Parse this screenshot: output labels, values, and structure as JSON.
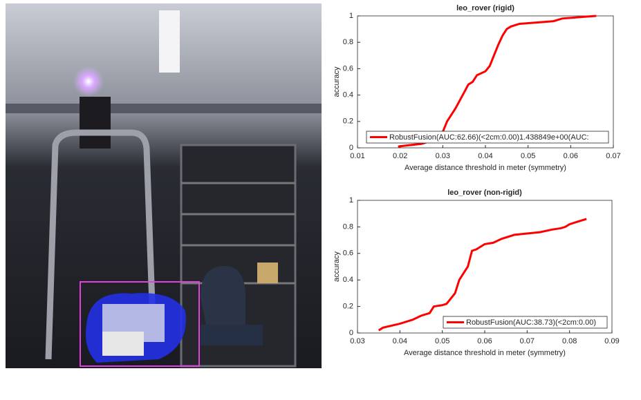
{
  "chart_data": [
    {
      "type": "line",
      "title": "leo_rover (rigid)",
      "xlabel": "Average distance threshold in meter (symmetry)",
      "ylabel": "accuracy",
      "xlim": [
        0.01,
        0.07
      ],
      "xticks": [
        0.01,
        0.02,
        0.03,
        0.04,
        0.05,
        0.06,
        0.07
      ],
      "ylim": [
        0,
        1
      ],
      "yticks": [
        0,
        0.2,
        0.4,
        0.6,
        0.8,
        1
      ],
      "legend": "lower-right",
      "series": [
        {
          "name": "RobustFusion(AUC:62.66)(<2cm:0.00)1.438849e+00(AUC:",
          "color": "#ff0000",
          "x": [
            0.0195,
            0.022,
            0.025,
            0.028,
            0.03,
            0.031,
            0.033,
            0.035,
            0.036,
            0.037,
            0.038,
            0.04,
            0.041,
            0.042,
            0.043,
            0.044,
            0.045,
            0.046,
            0.048,
            0.052,
            0.056,
            0.058,
            0.062,
            0.066
          ],
          "values": [
            0.01,
            0.02,
            0.03,
            0.06,
            0.12,
            0.2,
            0.3,
            0.42,
            0.48,
            0.5,
            0.55,
            0.58,
            0.62,
            0.7,
            0.78,
            0.85,
            0.9,
            0.92,
            0.94,
            0.95,
            0.96,
            0.98,
            0.99,
            1.0
          ]
        }
      ]
    },
    {
      "type": "line",
      "title": "leo_rover (non-rigid)",
      "xlabel": "Average distance threshold in meter (symmetry)",
      "ylabel": "accuracy",
      "xlim": [
        0.03,
        0.09
      ],
      "xticks": [
        0.03,
        0.04,
        0.05,
        0.06,
        0.07,
        0.08,
        0.09
      ],
      "ylim": [
        0,
        1
      ],
      "yticks": [
        0,
        0.2,
        0.4,
        0.6,
        0.8,
        1
      ],
      "legend": "lower-right",
      "series": [
        {
          "name": "RobustFusion(AUC:38.73)(<2cm:0.00)",
          "color": "#ff0000",
          "x": [
            0.035,
            0.036,
            0.04,
            0.043,
            0.045,
            0.047,
            0.048,
            0.05,
            0.051,
            0.053,
            0.054,
            0.055,
            0.056,
            0.057,
            0.058,
            0.06,
            0.062,
            0.064,
            0.067,
            0.07,
            0.073,
            0.076,
            0.078,
            0.079,
            0.08,
            0.082,
            0.084
          ],
          "values": [
            0.02,
            0.04,
            0.07,
            0.1,
            0.13,
            0.15,
            0.2,
            0.21,
            0.22,
            0.3,
            0.4,
            0.45,
            0.5,
            0.62,
            0.63,
            0.67,
            0.68,
            0.71,
            0.74,
            0.75,
            0.76,
            0.78,
            0.79,
            0.8,
            0.82,
            0.84,
            0.86
          ]
        }
      ]
    }
  ]
}
